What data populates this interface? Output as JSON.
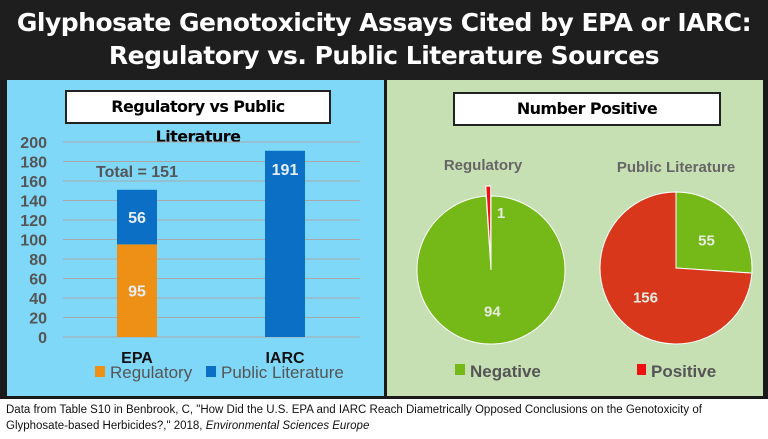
{
  "title_lines": [
    "Glyphosate Genotoxicity Assays Cited by EPA or IARC:",
    "Regulatory vs. Public Literature Sources"
  ],
  "footer": {
    "text": "Data from Table S10 in Benbrook, C, \"How Did the U.S. EPA and IARC Reach Diametrically Opposed Conclusions on the Genotoxicity of Glyphosate-based Herbicides?,\" 2018, ",
    "journal": "Environmental Sciences Europe"
  },
  "colors": {
    "regulatory": "#ee8f16",
    "public": "#0a6fc5",
    "negative": "#75b919",
    "positive_regulatory": "#ee1111",
    "positive_public": "#d9371c"
  },
  "chart_data": [
    {
      "type": "bar",
      "stacked": true,
      "title": "Regulatory vs Public Literature",
      "categories": [
        "EPA",
        "IARC"
      ],
      "series": [
        {
          "name": "Regulatory",
          "values": [
            95,
            0
          ]
        },
        {
          "name": "Public Literature",
          "values": [
            56,
            191
          ]
        }
      ],
      "annotation": "Total = 151",
      "ylim": [
        0,
        200
      ],
      "yticks": [
        0,
        20,
        40,
        60,
        80,
        100,
        120,
        140,
        160,
        180,
        200
      ],
      "grid": true,
      "legend": "bottom"
    },
    {
      "type": "pie",
      "title": "Number Positive",
      "pies": [
        {
          "name": "Regulatory",
          "slices": [
            {
              "label": "Negative",
              "value": 94
            },
            {
              "label": "Positive",
              "value": 1
            }
          ]
        },
        {
          "name": "Public Literature",
          "slices": [
            {
              "label": "Negative",
              "value": 55
            },
            {
              "label": "Positive",
              "value": 156
            }
          ]
        }
      ],
      "legend": [
        "Negative",
        "Positive"
      ]
    }
  ]
}
